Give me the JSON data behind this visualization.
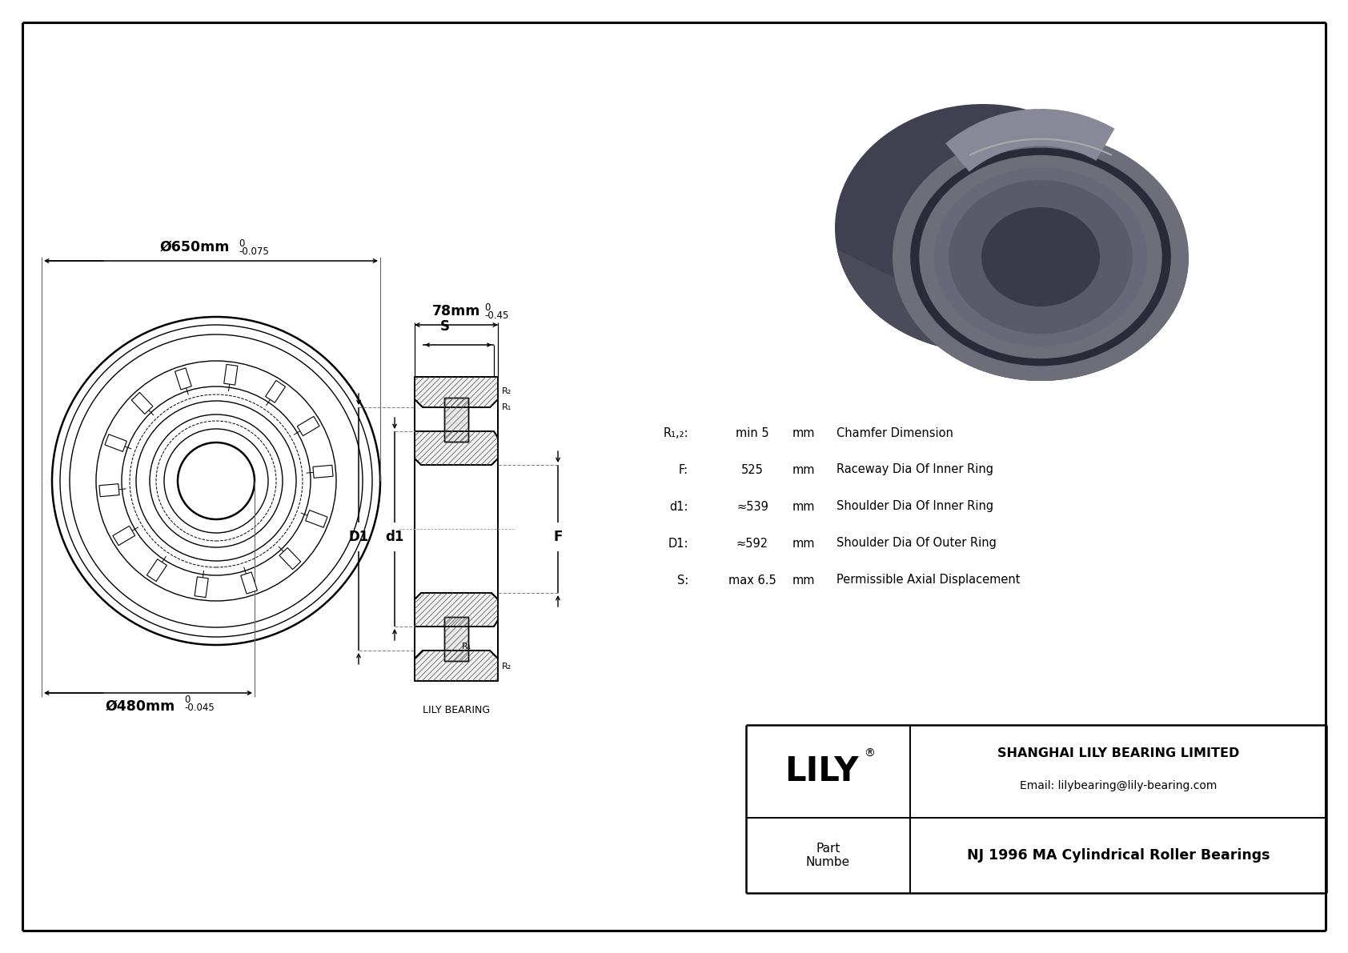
{
  "bg_color": "#ffffff",
  "line_color": "#000000",
  "title_company": "SHANGHAI LILY BEARING LIMITED",
  "title_email": "Email: lilybearing@lily-bearing.com",
  "brand": "LILY",
  "part_label": "Part\nNumbe",
  "part_name": "NJ 1996 MA Cylindrical Roller Bearings",
  "dim_outer": "Ø650mm",
  "dim_outer_tol": "-0.075",
  "dim_outer_tol_upper": "0",
  "dim_inner": "Ø480mm",
  "dim_inner_tol": "-0.045",
  "dim_inner_tol_upper": "0",
  "dim_width": "78mm",
  "dim_width_tol": "-0.45",
  "dim_width_tol_upper": "0",
  "label_S": "S",
  "label_D1": "D1",
  "label_d1": "d1",
  "label_F": "F",
  "label_R1": "R₁",
  "label_R2": "R₂",
  "specs": [
    [
      "R₁,₂:",
      "min 5",
      "mm",
      "Chamfer Dimension"
    ],
    [
      "F:",
      "525",
      "mm",
      "Raceway Dia Of Inner Ring"
    ],
    [
      "d1:",
      "≈539",
      "mm",
      "Shoulder Dia Of Inner Ring"
    ],
    [
      "D1:",
      "≈592",
      "mm",
      "Shoulder Dia Of Outer Ring"
    ],
    [
      "S:",
      "max 6.5",
      "mm",
      "Permissible Axial Displacement"
    ]
  ],
  "lily_bearing_label": "LILY BEARING",
  "bearing_colors": {
    "outer_body": "#5c5c6a",
    "outer_face": "#6e6e7a",
    "outer_rim": "#7a7a88",
    "inner_body": "#5a5a68",
    "inner_face": "#686878",
    "bore_dark": "#3a3a4a",
    "shadow": "#404050",
    "highlight": "#888898",
    "groove_dark": "#2a2a38"
  }
}
